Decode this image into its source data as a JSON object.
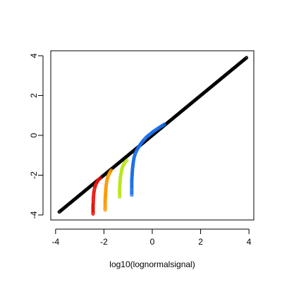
{
  "chart_data": {
    "type": "scatter",
    "title": "",
    "xlabel": "log10(lognormalsignal)",
    "ylabel": "",
    "xlim": [
      -4.2,
      4.2
    ],
    "ylim": [
      -4.25,
      4.25
    ],
    "xticks": [
      -4,
      -2,
      0,
      2,
      4
    ],
    "yticks": [
      -4,
      -2,
      0,
      2,
      4
    ],
    "xtick_labels": [
      "-4",
      "-2",
      "0",
      "2",
      "4"
    ],
    "ytick_labels": [
      "-4",
      "-2",
      "0",
      "2",
      "4"
    ],
    "grid": false,
    "legend": "none",
    "marker": "open-circle",
    "series": [
      {
        "color": "#000000",
        "x": [
          -3.85,
          -3.6,
          -3.45,
          -3.35,
          -3.25,
          -3.15,
          -3.05,
          -2.95,
          -2.85,
          -2.75,
          -2.65,
          -2.55,
          -2.4,
          -2.2,
          -2.0,
          -1.8,
          -1.6,
          -1.4,
          -1.2,
          -1.0,
          -0.8,
          -0.6,
          -0.4,
          -0.2,
          0.0,
          0.2,
          0.4,
          0.6,
          0.8,
          1.0,
          1.2,
          1.4,
          1.6,
          1.8,
          2.0,
          2.2,
          2.4,
          2.6,
          2.8,
          3.0,
          3.1,
          3.2,
          3.3,
          3.4,
          3.55,
          3.7,
          3.9
        ],
        "y": [
          -3.85,
          -3.6,
          -3.45,
          -3.35,
          -3.25,
          -3.15,
          -3.05,
          -2.95,
          -2.85,
          -2.75,
          -2.65,
          -2.55,
          -2.4,
          -2.2,
          -2.0,
          -1.8,
          -1.6,
          -1.4,
          -1.2,
          -1.0,
          -0.8,
          -0.6,
          -0.4,
          -0.2,
          0.0,
          0.2,
          0.4,
          0.6,
          0.8,
          1.0,
          1.2,
          1.4,
          1.6,
          1.8,
          2.0,
          2.2,
          2.4,
          2.6,
          2.8,
          3.0,
          3.1,
          3.2,
          3.3,
          3.4,
          3.55,
          3.7,
          3.9
        ]
      },
      {
        "color": "#e8120c",
        "x": [
          -2.45,
          -2.45,
          -2.45,
          -2.44,
          -2.44,
          -2.43,
          -2.42,
          -2.4,
          -2.38,
          -2.35,
          -2.3,
          -2.25,
          -2.2,
          -2.15
        ],
        "y": [
          -3.95,
          -3.75,
          -3.55,
          -3.35,
          -3.2,
          -3.05,
          -2.9,
          -2.75,
          -2.62,
          -2.5,
          -2.38,
          -2.28,
          -2.2,
          -2.14
        ]
      },
      {
        "color": "#ff9a00",
        "x": [
          -1.95,
          -1.95,
          -1.95,
          -1.94,
          -1.93,
          -1.92,
          -1.9,
          -1.88,
          -1.85,
          -1.8,
          -1.75,
          -1.7
        ],
        "y": [
          -3.75,
          -3.45,
          -3.25,
          -3.05,
          -2.85,
          -2.65,
          -2.45,
          -2.28,
          -2.12,
          -1.98,
          -1.86,
          -1.76
        ]
      },
      {
        "color": "#b8e61a",
        "x": [
          -1.35,
          -1.35,
          -1.35,
          -1.34,
          -1.33,
          -1.31,
          -1.28,
          -1.25,
          -1.2,
          -1.15,
          -1.1,
          -1.05
        ],
        "y": [
          -3.1,
          -2.85,
          -2.65,
          -2.45,
          -2.25,
          -2.05,
          -1.85,
          -1.65,
          -1.5,
          -1.4,
          -1.32,
          -1.26
        ]
      },
      {
        "color": "#1a6eea",
        "x": [
          -0.85,
          -0.85,
          -0.85,
          -0.85,
          -0.85,
          -0.84,
          -0.83,
          -0.82,
          -0.8,
          -0.78,
          -0.75,
          -0.7,
          -0.62,
          -0.52,
          -0.4,
          -0.25,
          -0.1,
          0.05,
          0.2,
          0.35,
          0.5
        ],
        "y": [
          -3.0,
          -2.85,
          -2.7,
          -2.5,
          -2.3,
          -2.1,
          -1.9,
          -1.7,
          -1.5,
          -1.3,
          -1.1,
          -0.9,
          -0.7,
          -0.5,
          -0.3,
          -0.1,
          0.05,
          0.2,
          0.32,
          0.44,
          0.55
        ]
      }
    ]
  }
}
